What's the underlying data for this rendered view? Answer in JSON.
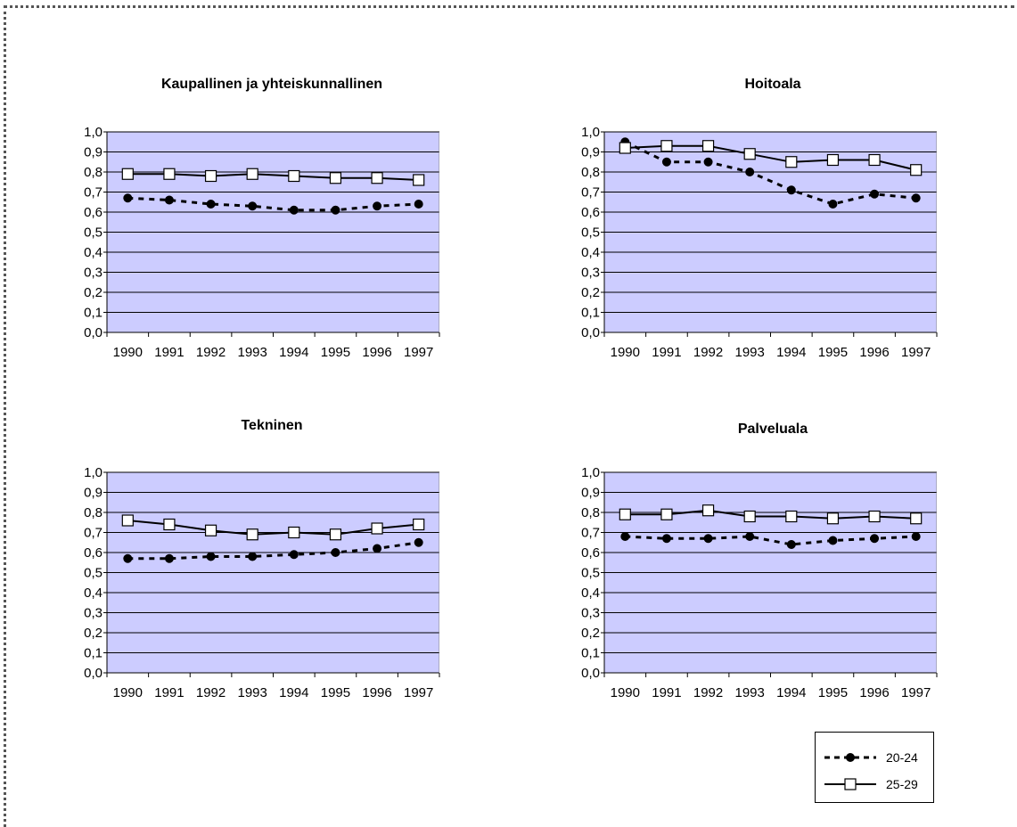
{
  "colors": {
    "plot_bg": "#ccccff",
    "grid": "#000000",
    "series_line": "#000000",
    "marker_fill_open": "#ffffff"
  },
  "legend": {
    "items": [
      {
        "label": "20-24"
      },
      {
        "label": "25-29"
      }
    ]
  },
  "chart_data": [
    {
      "type": "line",
      "title": "Kaupallinen ja yhteiskunnallinen",
      "categories": [
        "1990",
        "1991",
        "1992",
        "1993",
        "1994",
        "1995",
        "1996",
        "1997"
      ],
      "ylim": [
        0,
        1.0
      ],
      "yticks": [
        "0,0",
        "0,1",
        "0,2",
        "0,3",
        "0,4",
        "0,5",
        "0,6",
        "0,7",
        "0,8",
        "0,9",
        "1,0"
      ],
      "grid": true,
      "series": [
        {
          "name": "20-24",
          "style": "dashed-filled-circle",
          "values": [
            0.67,
            0.66,
            0.64,
            0.63,
            0.61,
            0.61,
            0.63,
            0.64
          ]
        },
        {
          "name": "25-29",
          "style": "solid-open-square",
          "values": [
            0.79,
            0.79,
            0.78,
            0.79,
            0.78,
            0.77,
            0.77,
            0.76
          ]
        }
      ]
    },
    {
      "type": "line",
      "title": "Hoitoala",
      "categories": [
        "1990",
        "1991",
        "1992",
        "1993",
        "1994",
        "1995",
        "1996",
        "1997"
      ],
      "ylim": [
        0,
        1.0
      ],
      "yticks": [
        "0,0",
        "0,1",
        "0,2",
        "0,3",
        "0,4",
        "0,5",
        "0,6",
        "0,7",
        "0,8",
        "0,9",
        "1,0"
      ],
      "grid": true,
      "series": [
        {
          "name": "20-24",
          "style": "dashed-filled-circle",
          "values": [
            0.95,
            0.85,
            0.85,
            0.8,
            0.71,
            0.64,
            0.69,
            0.67
          ]
        },
        {
          "name": "25-29",
          "style": "solid-open-square",
          "values": [
            0.92,
            0.93,
            0.93,
            0.89,
            0.85,
            0.86,
            0.86,
            0.81
          ]
        }
      ]
    },
    {
      "type": "line",
      "title": "Tekninen",
      "categories": [
        "1990",
        "1991",
        "1992",
        "1993",
        "1994",
        "1995",
        "1996",
        "1997"
      ],
      "ylim": [
        0,
        1.0
      ],
      "yticks": [
        "0,0",
        "0,1",
        "0,2",
        "0,3",
        "0,4",
        "0,5",
        "0,6",
        "0,7",
        "0,8",
        "0,9",
        "1,0"
      ],
      "grid": true,
      "series": [
        {
          "name": "20-24",
          "style": "dashed-filled-circle",
          "values": [
            0.57,
            0.57,
            0.58,
            0.58,
            0.59,
            0.6,
            0.62,
            0.65
          ]
        },
        {
          "name": "25-29",
          "style": "solid-open-square",
          "values": [
            0.76,
            0.74,
            0.71,
            0.69,
            0.7,
            0.69,
            0.72,
            0.74
          ]
        }
      ]
    },
    {
      "type": "line",
      "title": "Palveluala",
      "categories": [
        "1990",
        "1991",
        "1992",
        "1993",
        "1994",
        "1995",
        "1996",
        "1997"
      ],
      "ylim": [
        0,
        1.0
      ],
      "yticks": [
        "0,0",
        "0,1",
        "0,2",
        "0,3",
        "0,4",
        "0,5",
        "0,6",
        "0,7",
        "0,8",
        "0,9",
        "1,0"
      ],
      "grid": true,
      "series": [
        {
          "name": "20-24",
          "style": "dashed-filled-circle",
          "values": [
            0.68,
            0.67,
            0.67,
            0.68,
            0.64,
            0.66,
            0.67,
            0.68
          ]
        },
        {
          "name": "25-29",
          "style": "solid-open-square",
          "values": [
            0.79,
            0.79,
            0.81,
            0.78,
            0.78,
            0.77,
            0.78,
            0.77
          ]
        }
      ]
    }
  ]
}
